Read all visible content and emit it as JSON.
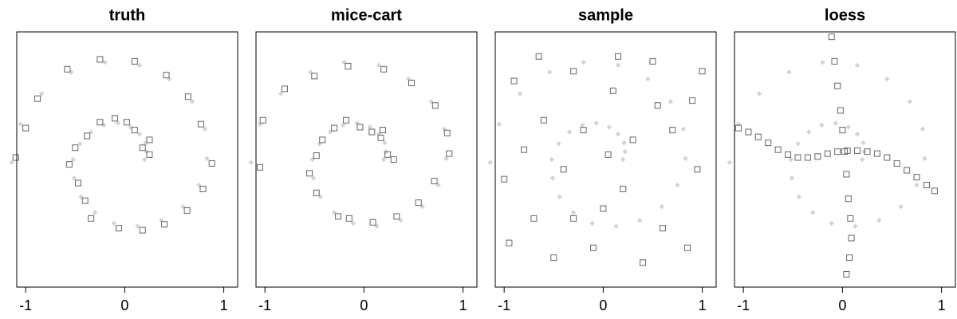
{
  "observed_points": {
    "color": "#d3d3d3",
    "marker": "diamond",
    "x": [
      0.2,
      0.22,
      0.21,
      0.15,
      0.06,
      -0.07,
      -0.21,
      -0.34,
      -0.45,
      -0.52,
      -0.51,
      -0.44,
      -0.3,
      -0.11,
      0.13,
      0.37,
      0.59,
      0.75,
      0.83,
      0.81,
      0.68,
      0.45,
      0.15,
      -0.2,
      -0.54,
      -0.84,
      -1.05,
      -1.14
    ],
    "y": [
      0.0,
      0.08,
      0.17,
      0.26,
      0.33,
      0.37,
      0.35,
      0.28,
      0.16,
      0.0,
      -0.19,
      -0.38,
      -0.54,
      -0.65,
      -0.68,
      -0.62,
      -0.48,
      -0.26,
      0.01,
      0.31,
      0.59,
      0.82,
      0.96,
      0.99,
      0.89,
      0.67,
      0.36,
      -0.03
    ]
  },
  "chart_data": [
    {
      "type": "scatter",
      "title": "truth",
      "xlim": [
        -1.09,
        1.14
      ],
      "ylim": [
        -1.3,
        1.3
      ],
      "xticks": [
        -1,
        0,
        1
      ],
      "series": [
        {
          "color": "#666666",
          "marker": "square",
          "x": [
            0.25,
            0.18,
            0.25,
            0.1,
            0.02,
            -0.1,
            -0.25,
            -0.38,
            -0.5,
            -0.56,
            -0.47,
            -0.4,
            -0.34,
            -0.06,
            0.18,
            0.4,
            0.63,
            0.79,
            0.88,
            0.77,
            0.64,
            0.42,
            0.1,
            -0.25,
            -0.58,
            -0.88,
            -1.0,
            -1.1
          ],
          "y": [
            0.05,
            0.12,
            0.2,
            0.3,
            0.38,
            0.42,
            0.38,
            0.24,
            0.12,
            -0.05,
            -0.24,
            -0.42,
            -0.6,
            -0.7,
            -0.72,
            -0.66,
            -0.52,
            -0.3,
            -0.04,
            0.36,
            0.64,
            0.86,
            1.0,
            1.02,
            0.92,
            0.62,
            0.32,
            0.02
          ]
        }
      ]
    },
    {
      "type": "scatter",
      "title": "mice-cart",
      "xlim": [
        -1.09,
        1.14
      ],
      "ylim": [
        -1.3,
        1.3
      ],
      "xticks": [
        -1,
        0,
        1
      ],
      "series": [
        {
          "color": "#666666",
          "marker": "square",
          "x": [
            0.3,
            0.24,
            0.17,
            0.19,
            0.08,
            -0.04,
            -0.18,
            -0.3,
            -0.42,
            -0.48,
            -0.55,
            -0.48,
            -0.26,
            -0.15,
            0.09,
            0.33,
            0.55,
            0.71,
            0.86,
            0.84,
            0.72,
            0.48,
            0.2,
            -0.16,
            -0.5,
            -0.8,
            -1.02,
            -1.05
          ],
          "y": [
            0.0,
            0.05,
            0.22,
            0.3,
            0.28,
            0.33,
            0.4,
            0.32,
            0.2,
            0.04,
            -0.14,
            -0.34,
            -0.58,
            -0.6,
            -0.64,
            -0.58,
            -0.44,
            -0.22,
            0.06,
            0.27,
            0.55,
            0.78,
            0.92,
            0.95,
            0.85,
            0.72,
            0.4,
            -0.08
          ]
        }
      ]
    },
    {
      "type": "scatter",
      "title": "sample",
      "xlim": [
        -1.09,
        1.14
      ],
      "ylim": [
        -1.3,
        1.3
      ],
      "xticks": [
        -1,
        0,
        1
      ],
      "series": [
        {
          "color": "#666666",
          "marker": "square",
          "x": [
            -0.9,
            -0.6,
            -0.3,
            0.1,
            0.5,
            0.9,
            -1.0,
            -0.7,
            -0.4,
            -0.1,
            0.2,
            0.6,
            0.95,
            -0.8,
            -0.2,
            0.3,
            0.7,
            -0.5,
            0.0,
            0.4,
            0.85,
            -0.95,
            -0.3,
            0.15,
            -0.65,
            0.55,
            0.05,
            1.0
          ],
          "y": [
            0.8,
            0.4,
            0.9,
            0.7,
            1.0,
            0.6,
            -0.2,
            -0.6,
            -0.1,
            -0.9,
            -0.3,
            -0.7,
            -0.1,
            0.1,
            0.3,
            0.2,
            0.3,
            -1.0,
            -0.5,
            -1.05,
            -0.9,
            -0.85,
            -0.6,
            1.05,
            1.05,
            0.55,
            0.05,
            0.9
          ]
        }
      ]
    },
    {
      "type": "scatter",
      "title": "loess",
      "xlim": [
        -1.09,
        1.14
      ],
      "ylim": [
        -1.3,
        1.3
      ],
      "xticks": [
        -1,
        0,
        1
      ],
      "series": [
        {
          "color": "#666666",
          "marker": "square",
          "x": [
            -1.05,
            -0.95,
            -0.85,
            -0.75,
            -0.65,
            -0.55,
            -0.45,
            -0.35,
            -0.25,
            -0.15,
            -0.05,
            0.05,
            0.15,
            0.25,
            0.35,
            0.45,
            0.55,
            0.65,
            0.75,
            0.85,
            0.93,
            -0.11,
            -0.08,
            -0.05,
            -0.02,
            0.0,
            0.02,
            0.04,
            0.06,
            0.08,
            0.09,
            0.07,
            0.04
          ],
          "y": [
            0.32,
            0.28,
            0.23,
            0.17,
            0.1,
            0.05,
            0.02,
            0.02,
            0.03,
            0.06,
            0.08,
            0.09,
            0.09,
            0.08,
            0.06,
            0.02,
            -0.04,
            -0.11,
            -0.18,
            -0.26,
            -0.32,
            1.25,
            1.0,
            0.75,
            0.5,
            0.3,
            0.08,
            -0.15,
            -0.4,
            -0.6,
            -0.8,
            -1.0,
            -1.17
          ]
        }
      ]
    }
  ]
}
